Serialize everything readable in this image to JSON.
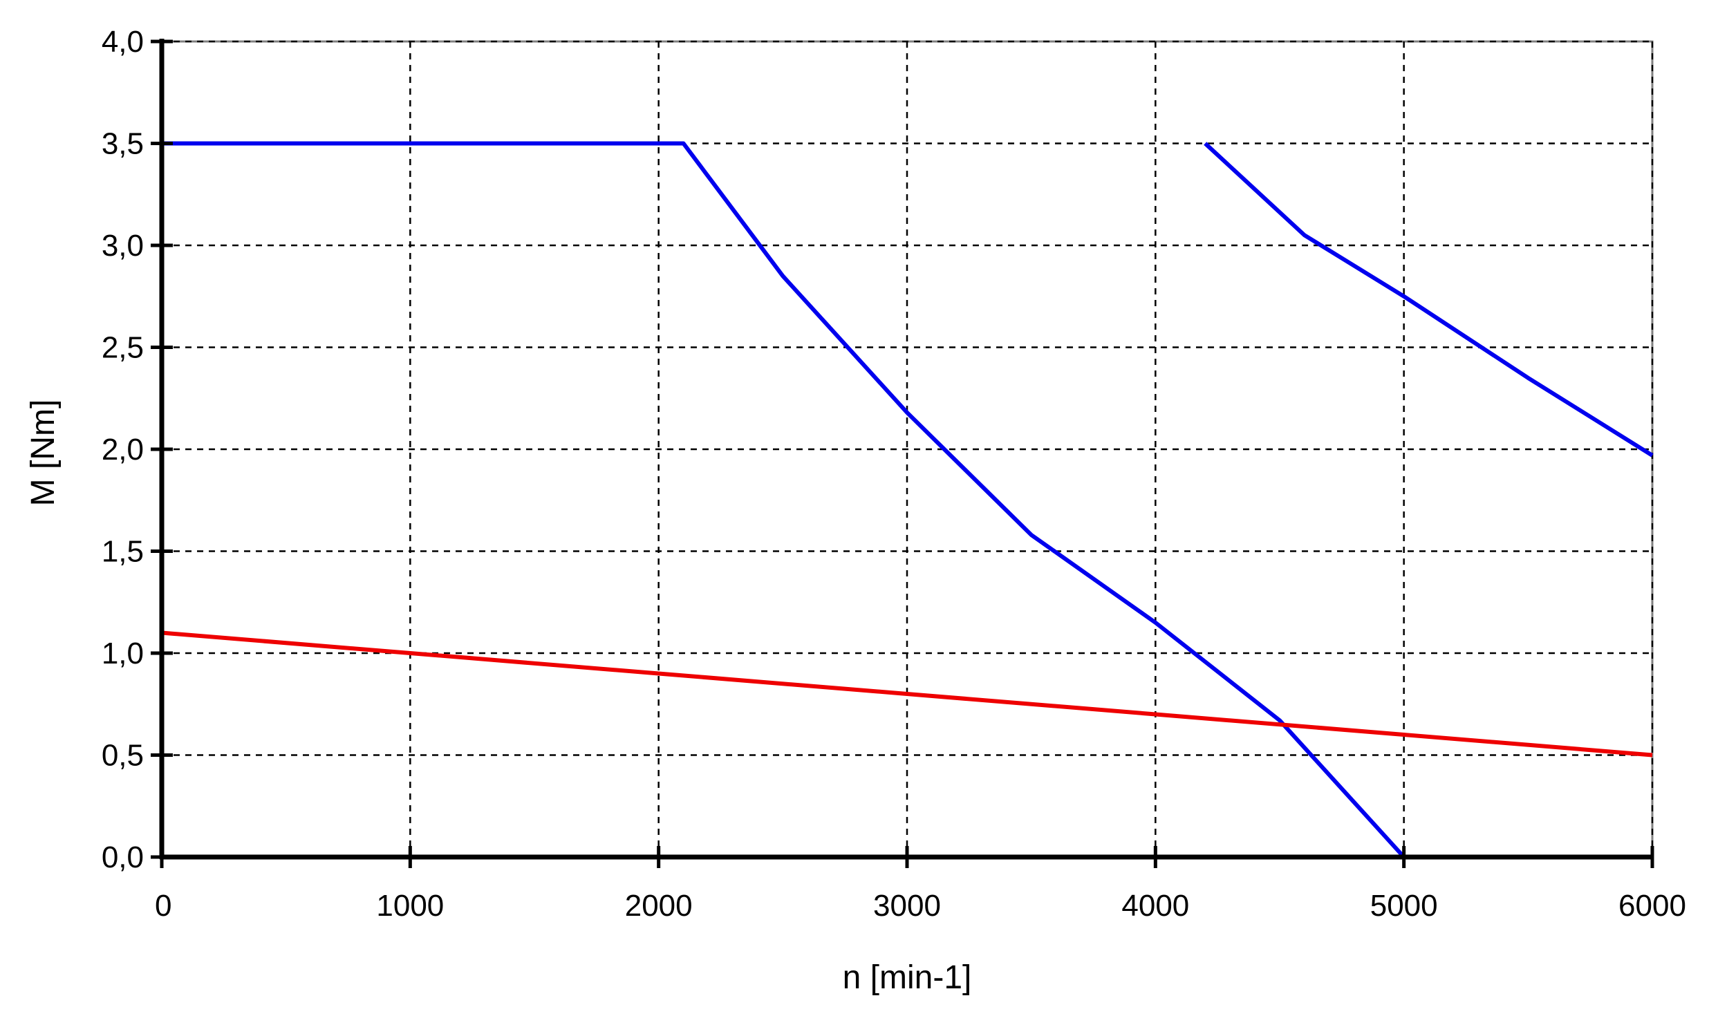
{
  "chart_data": {
    "type": "line",
    "title": "",
    "xlabel": "n [min-1]",
    "ylabel": "M [Nm]",
    "xlim": [
      0,
      6000
    ],
    "ylim": [
      0,
      4
    ],
    "x_ticks": [
      0,
      1000,
      2000,
      3000,
      4000,
      5000,
      6000
    ],
    "x_tick_labels": [
      "0",
      "1000",
      "2000",
      "3000",
      "4000",
      "5000",
      "6000"
    ],
    "y_ticks": [
      0,
      0.5,
      1,
      1.5,
      2,
      2.5,
      3,
      3.5,
      4
    ],
    "y_tick_labels": [
      "0,0",
      "0,5",
      "1,0",
      "1,5",
      "2,0",
      "2,5",
      "3,0",
      "3,5",
      "4,0"
    ],
    "grid": true,
    "legend": "none",
    "series": [
      {
        "color": "#0000ee",
        "points": [
          [
            0,
            3.5
          ],
          [
            2100,
            3.5
          ],
          [
            2500,
            2.85
          ],
          [
            3000,
            2.18
          ],
          [
            3500,
            1.58
          ],
          [
            4000,
            1.15
          ],
          [
            4500,
            0.67
          ],
          [
            5000,
            0.0
          ]
        ]
      },
      {
        "color": "#0000ee",
        "points": [
          [
            4200,
            3.5
          ],
          [
            4600,
            3.05
          ],
          [
            5000,
            2.75
          ],
          [
            5500,
            2.35
          ],
          [
            6000,
            1.97
          ]
        ]
      },
      {
        "color": "#ee0000",
        "points": [
          [
            0,
            1.1
          ],
          [
            1000,
            1.0
          ],
          [
            2000,
            0.9
          ],
          [
            3000,
            0.8
          ],
          [
            4000,
            0.7
          ],
          [
            5000,
            0.6
          ],
          [
            6000,
            0.5
          ]
        ]
      }
    ]
  }
}
